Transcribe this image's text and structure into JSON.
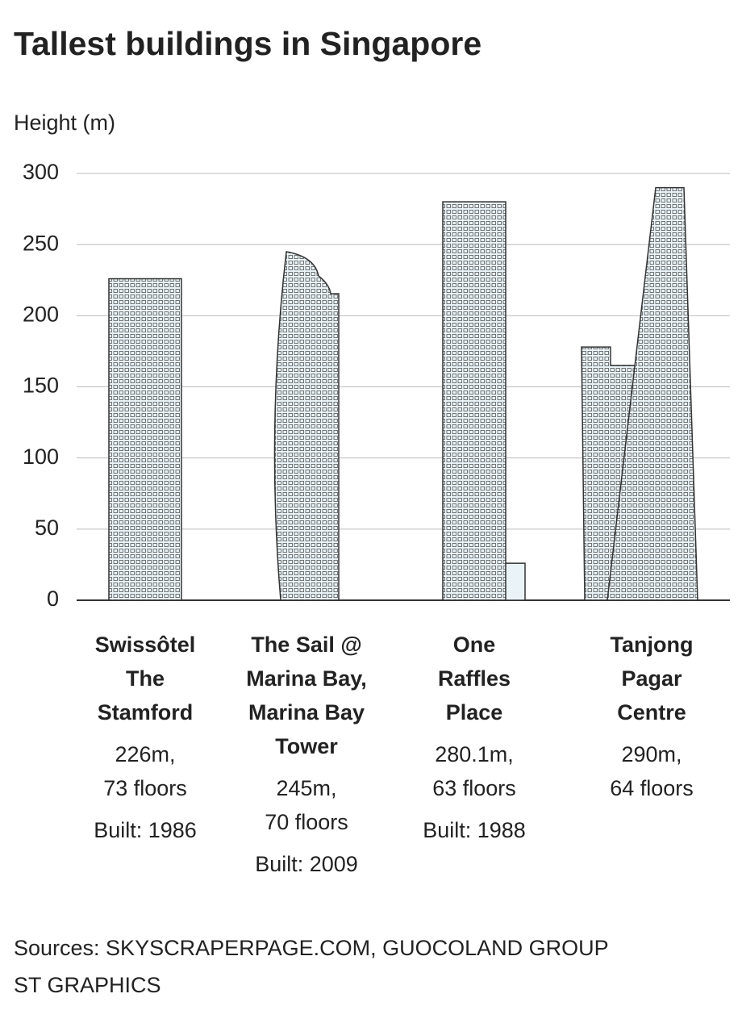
{
  "chart_data": {
    "type": "bar",
    "title": "Tallest buildings in Singapore",
    "y_label": "Height (m)",
    "categories": [
      "Swissôtel\nThe\nStamford",
      "The Sail @\nMarina Bay,\nMarina Bay\nTower",
      "One\nRaffles\nPlace",
      "Tanjong\nPagar\nCentre"
    ],
    "values": [
      226,
      245,
      280.1,
      290
    ],
    "value_labels": [
      "226m,",
      "245m,",
      "280.1m,",
      "290m,"
    ],
    "floors": [
      "73 floors",
      "70 floors",
      "63 floors",
      "64 floors"
    ],
    "built": [
      "Built: 1986",
      "Built: 2009",
      "Built: 1988",
      null
    ],
    "ylim": [
      0,
      300
    ],
    "yticks": [
      0,
      50,
      100,
      150,
      200,
      250,
      300
    ],
    "grid": true,
    "color": "#eaf4f8",
    "source": "Sources: SKYSCRAPERPAGE.COM, GUOCOLAND GROUP",
    "credit": "ST GRAPHICS"
  }
}
